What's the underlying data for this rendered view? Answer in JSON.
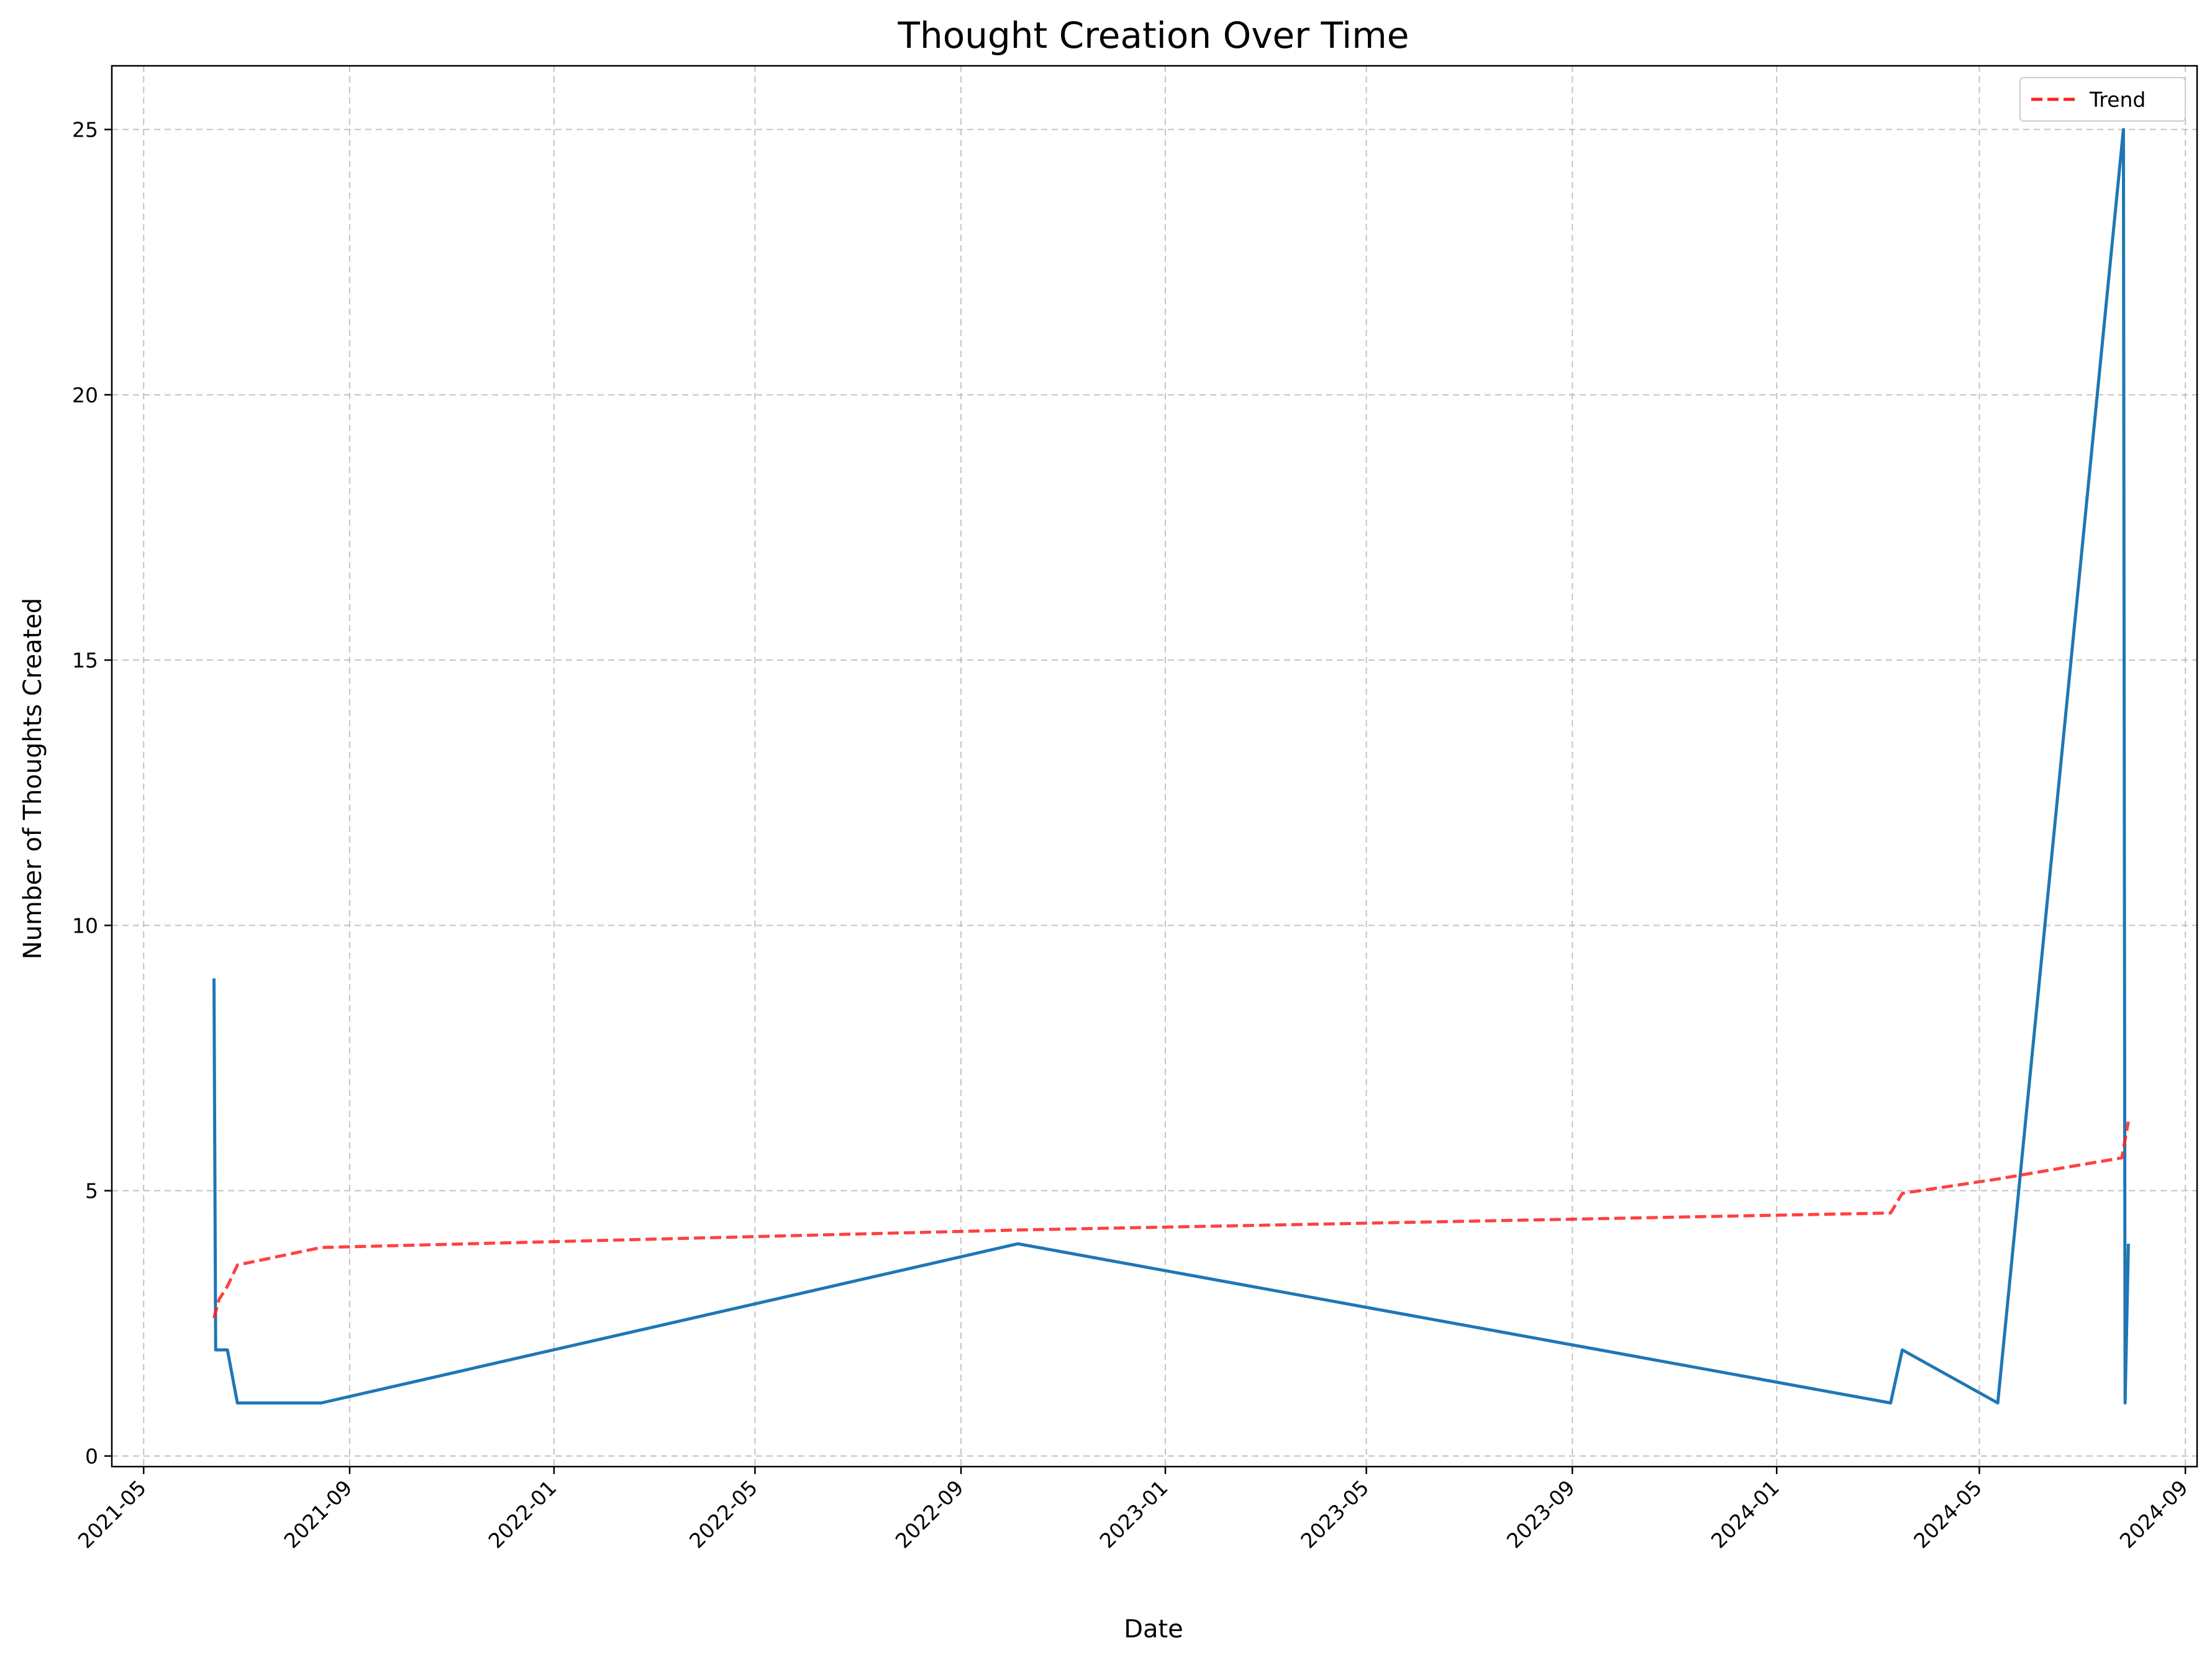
{
  "chart_data": {
    "type": "line",
    "title": "Thought Creation Over Time",
    "xlabel": "Date",
    "ylabel": "Number of Thoughts Created",
    "x_tick_labels": [
      "2021-05",
      "2021-09",
      "2022-01",
      "2022-05",
      "2022-09",
      "2023-01",
      "2023-05",
      "2023-09",
      "2024-01",
      "2024-05",
      "2024-09"
    ],
    "x_tick_dates": [
      "2021-05-01",
      "2021-09-01",
      "2022-01-01",
      "2022-05-01",
      "2022-09-01",
      "2023-01-01",
      "2023-05-01",
      "2023-09-01",
      "2024-01-01",
      "2024-05-01",
      "2024-09-01"
    ],
    "y_ticks": [
      0,
      5,
      10,
      15,
      20,
      25
    ],
    "xlim": [
      "2021-04-12",
      "2024-09-08"
    ],
    "ylim": [
      -0.2,
      26.2
    ],
    "grid": true,
    "legend_position": "top-right",
    "series": [
      {
        "name": "",
        "color": "#1f77b4",
        "style": "solid",
        "points": [
          {
            "x": "2021-06-12",
            "y": 9
          },
          {
            "x": "2021-06-13",
            "y": 2
          },
          {
            "x": "2021-06-20",
            "y": 2
          },
          {
            "x": "2021-06-26",
            "y": 1
          },
          {
            "x": "2021-08-15",
            "y": 1
          },
          {
            "x": "2022-10-05",
            "y": 4
          },
          {
            "x": "2024-03-09",
            "y": 1
          },
          {
            "x": "2024-03-16",
            "y": 2
          },
          {
            "x": "2024-05-12",
            "y": 1
          },
          {
            "x": "2024-07-26",
            "y": 25
          },
          {
            "x": "2024-07-27",
            "y": 1
          },
          {
            "x": "2024-07-29",
            "y": 4
          }
        ]
      },
      {
        "name": "Trend",
        "color": "#ff2020",
        "style": "dashed",
        "points": [
          {
            "x": "2021-06-12",
            "y": 2.6
          },
          {
            "x": "2021-06-15",
            "y": 2.95
          },
          {
            "x": "2021-06-20",
            "y": 3.2
          },
          {
            "x": "2021-06-26",
            "y": 3.6
          },
          {
            "x": "2021-08-15",
            "y": 3.93
          },
          {
            "x": "2022-10-05",
            "y": 4.26
          },
          {
            "x": "2024-03-09",
            "y": 4.58
          },
          {
            "x": "2024-03-16",
            "y": 4.95
          },
          {
            "x": "2024-05-12",
            "y": 5.22
          },
          {
            "x": "2024-07-25",
            "y": 5.62
          },
          {
            "x": "2024-07-29",
            "y": 6.3
          }
        ]
      }
    ]
  }
}
